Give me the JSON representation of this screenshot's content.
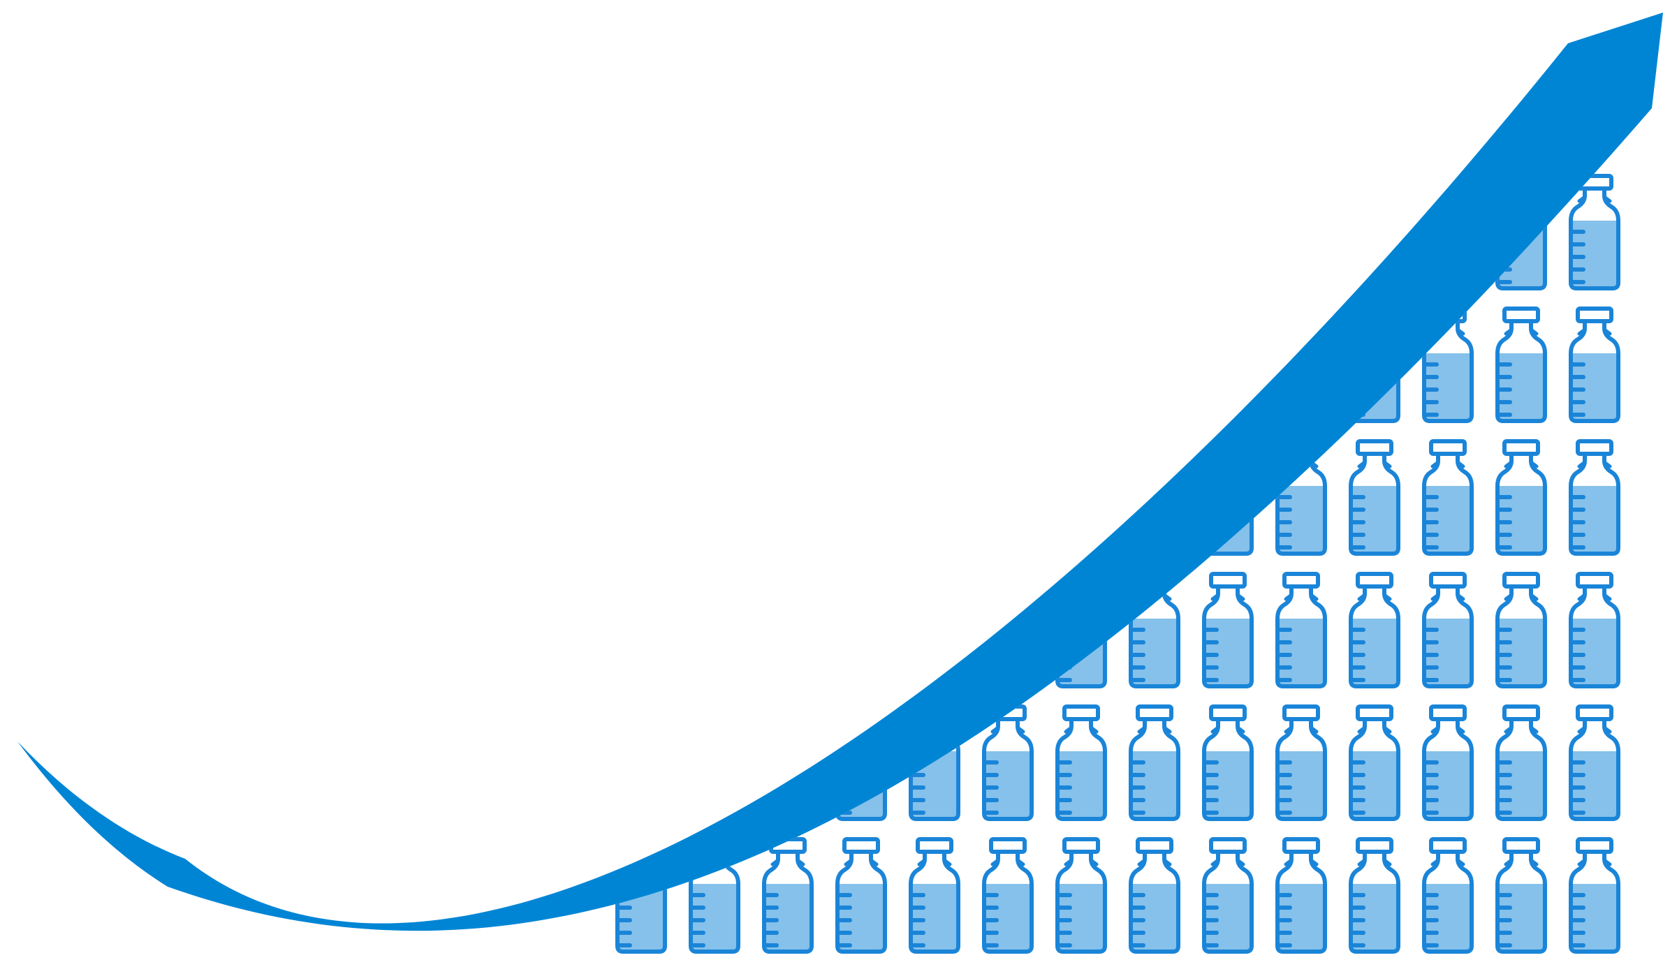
{
  "illustration": {
    "subject": "growth-arrow-over-vial-grid",
    "icon": "medicine-vial-icon",
    "columns": 14,
    "rows": 6,
    "colors": {
      "arrow": "#0085d5",
      "vial_outline": "#1a85d8",
      "vial_fill": "#85c1ea",
      "background": "#ffffff"
    }
  }
}
